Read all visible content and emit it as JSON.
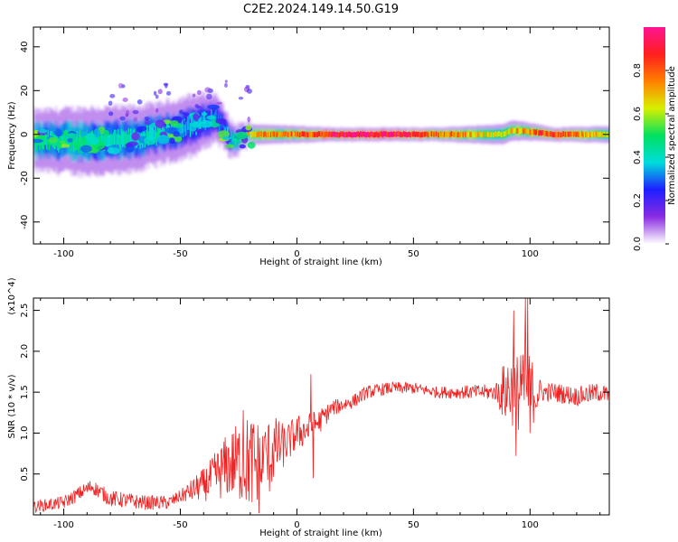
{
  "chart_data": [
    {
      "type": "heatmap",
      "title": "C2E2.2024.149.14.50.G19",
      "xlabel": "Height of straight line (km)",
      "ylabel": "Frequency (Hz)",
      "xlim": [
        -113,
        134
      ],
      "ylim": [
        -50,
        49
      ],
      "xticks": [
        -100,
        -50,
        0,
        50,
        100
      ],
      "yticks": [
        -40,
        -20,
        0,
        20,
        40
      ],
      "xtick_labels": [
        "-100",
        "-50",
        "0",
        "50",
        "100"
      ],
      "ytick_labels": [
        "-40",
        "-20",
        "0",
        "20",
        "40"
      ],
      "colorbar": {
        "label": "Normalized spectral amplitude",
        "range": [
          0.0,
          1.0
        ],
        "ticks": [
          "0.0",
          "0.2",
          "0.4",
          "0.6",
          "0.8"
        ],
        "colors": [
          "#ffffff",
          "#8a2be2",
          "#1e1eff",
          "#00dcdc",
          "#00e060",
          "#d8f000",
          "#ff8000",
          "#ff1e1e",
          "#ff1493"
        ]
      },
      "ridge": [
        {
          "x": -110,
          "y": -3,
          "width": 9,
          "amp": 0.45
        },
        {
          "x": -90,
          "y": -3,
          "width": 10,
          "amp": 0.45
        },
        {
          "x": -75,
          "y": -3,
          "width": 10,
          "amp": 0.4
        },
        {
          "x": -60,
          "y": 0,
          "width": 9,
          "amp": 0.4
        },
        {
          "x": -45,
          "y": 4,
          "width": 9,
          "amp": 0.35
        },
        {
          "x": -35,
          "y": 8,
          "width": 7,
          "amp": 0.3
        },
        {
          "x": -28,
          "y": -3,
          "width": 5,
          "amp": 0.4
        },
        {
          "x": -20,
          "y": 0,
          "width": 3,
          "amp": 0.7
        },
        {
          "x": 0,
          "y": 0,
          "width": 2.5,
          "amp": 0.75
        },
        {
          "x": 15,
          "y": 0,
          "width": 2,
          "amp": 0.95
        },
        {
          "x": 40,
          "y": 0,
          "width": 2,
          "amp": 0.95
        },
        {
          "x": 60,
          "y": 0,
          "width": 2,
          "amp": 0.8
        },
        {
          "x": 88,
          "y": 0,
          "width": 3,
          "amp": 0.6
        },
        {
          "x": 93,
          "y": 2,
          "width": 3,
          "amp": 0.7
        },
        {
          "x": 110,
          "y": 0,
          "width": 2,
          "amp": 0.85
        },
        {
          "x": 134,
          "y": 0,
          "width": 2.5,
          "amp": 0.6
        }
      ]
    },
    {
      "type": "line",
      "xlabel": "Height of straight line (km)",
      "ylabel": "SNR (10 * v/v)",
      "y_multiplier": "(x10^4)",
      "xlim": [
        -113,
        134
      ],
      "ylim": [
        0,
        2.65
      ],
      "xticks": [
        -100,
        -50,
        0,
        50,
        100
      ],
      "yticks": [
        0.5,
        1.0,
        1.5,
        2.0,
        2.5
      ],
      "xtick_labels": [
        "-100",
        "-50",
        "0",
        "50",
        "100"
      ],
      "ytick_labels": [
        "0.5",
        "1.0",
        "1.5",
        "2.0",
        "2.5"
      ],
      "color": "#ee2222",
      "envelope": {
        "x": [
          -113,
          -100,
          -88,
          -80,
          -65,
          -55,
          -45,
          -38,
          -30,
          -25,
          -20,
          -15,
          -10,
          -5,
          0,
          5,
          10,
          15,
          20,
          25,
          30,
          40,
          50,
          60,
          70,
          80,
          88,
          92,
          95,
          97,
          99,
          100,
          105,
          110,
          120,
          130,
          134
        ],
        "y": [
          0.1,
          0.15,
          0.35,
          0.2,
          0.15,
          0.15,
          0.3,
          0.4,
          0.6,
          0.65,
          0.65,
          0.55,
          0.8,
          0.85,
          1.0,
          1.05,
          1.15,
          1.3,
          1.35,
          1.4,
          1.5,
          1.55,
          1.55,
          1.5,
          1.5,
          1.5,
          1.5,
          1.55,
          1.5,
          1.5,
          1.5,
          1.5,
          1.5,
          1.5,
          1.45,
          1.5,
          1.45
        ]
      },
      "noise_amp": {
        "x": [
          -113,
          -80,
          -50,
          -40,
          -20,
          -15,
          -5,
          5,
          15,
          30,
          60,
          85,
          90,
          100,
          105,
          134
        ],
        "y": [
          0.07,
          0.1,
          0.08,
          0.2,
          0.6,
          0.6,
          0.25,
          0.2,
          0.1,
          0.08,
          0.07,
          0.1,
          0.45,
          0.5,
          0.12,
          0.12
        ]
      },
      "spikes": [
        {
          "x": -23,
          "y": 1.28
        },
        {
          "x": -14,
          "y": 0.95
        },
        {
          "x": 6,
          "y": 1.72
        },
        {
          "x": 7,
          "y": 0.45
        },
        {
          "x": 93,
          "y": 2.5
        },
        {
          "x": 94,
          "y": 0.72
        },
        {
          "x": 96,
          "y": 1.95
        },
        {
          "x": 98,
          "y": 2.65
        },
        {
          "x": 99,
          "y": 2.65
        },
        {
          "x": 100,
          "y": 1.0
        }
      ]
    }
  ]
}
